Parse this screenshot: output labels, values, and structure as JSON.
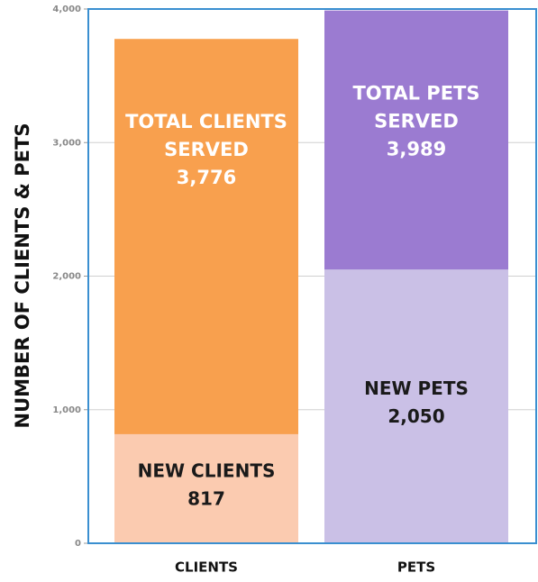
{
  "chart_data": {
    "type": "overlap-bar",
    "ylabel": "NUMBER OF CLIENTS & PETS",
    "categories": [
      "CLIENTS",
      "PETS"
    ],
    "series": [
      {
        "values": [
          3776,
          3989
        ],
        "colors": [
          "#f8a04e",
          "#9b7bd1"
        ],
        "labels": [
          [
            "TOTAL CLIENTS",
            "SERVED"
          ],
          [
            "TOTAL PETS",
            "SERVED"
          ]
        ],
        "value_labels": [
          "3,776",
          "3,989"
        ]
      },
      {
        "values": [
          817,
          2050
        ],
        "colors": [
          "#fbcbb0",
          "#cac0e6"
        ],
        "labels": [
          [
            "NEW CLIENTS"
          ],
          [
            "NEW PETS"
          ]
        ],
        "value_labels": [
          "817",
          "2,050"
        ]
      }
    ],
    "ylim": [
      0,
      4000
    ],
    "yticks": [
      0,
      {
        "value": 1000,
        "label": "1,000"
      },
      {
        "value": 2000,
        "label": "2,000"
      },
      {
        "value": 3000,
        "label": "3,000"
      },
      {
        "value": 4000,
        "label": "4,000"
      }
    ],
    "grid": true
  }
}
